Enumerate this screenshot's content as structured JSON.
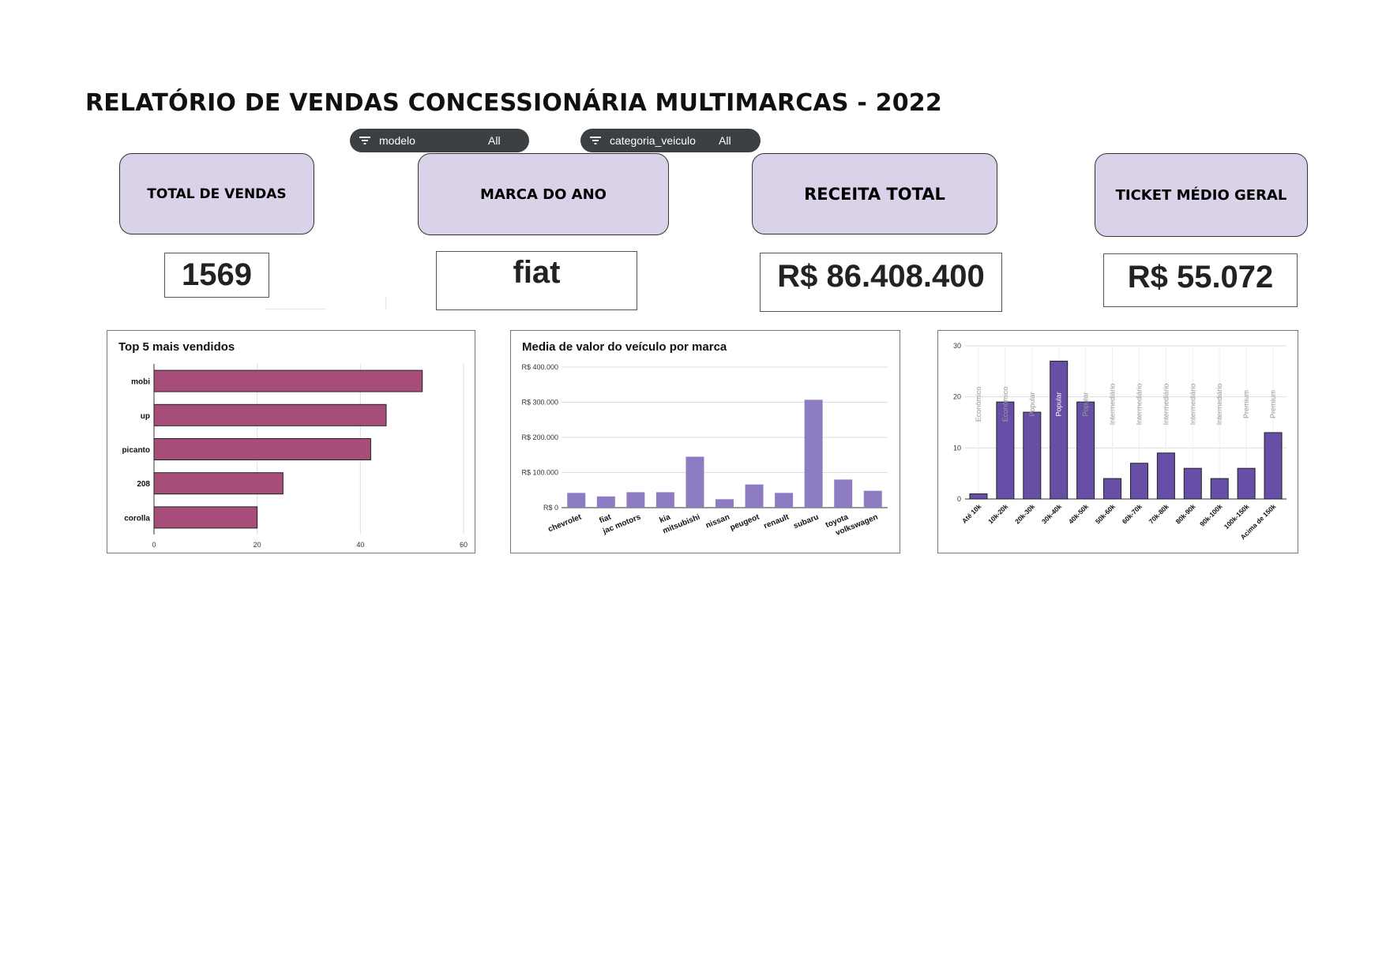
{
  "title": "RELATÓRIO DE VENDAS CONCESSIONÁRIA MULTIMARCAS - 2022",
  "filters": [
    {
      "label": "modelo",
      "value": "All",
      "icon": "filter-icon"
    },
    {
      "label": "categoria_veiculo",
      "value": "All",
      "icon": "filter-icon"
    }
  ],
  "kpis": {
    "total_vendas": {
      "label": "TOTAL DE VENDAS",
      "value": "1569"
    },
    "marca_ano": {
      "label": "MARCA DO ANO",
      "value": "fiat"
    },
    "receita": {
      "label": "RECEITA TOTAL",
      "value": "R$ 86.408.400"
    },
    "ticket": {
      "label": "TICKET MÉDIO GERAL",
      "value": "R$ 55.072"
    }
  },
  "colors": {
    "kpi_header_bg": "#d9d2e9",
    "top5_bar": "#a64d79",
    "marca_bar": "#8e7cc3",
    "faixa_bar": "#674ea7",
    "filter_bg": "#3c4043"
  },
  "chart_data": [
    {
      "type": "bar",
      "orientation": "horizontal",
      "title": "Top 5 mais vendidos",
      "categories": [
        "mobi",
        "up",
        "picanto",
        "208",
        "corolla"
      ],
      "values": [
        52,
        45,
        42,
        25,
        20
      ],
      "xlim": [
        0,
        60
      ],
      "xticks": [
        "0",
        "20",
        "40",
        "60"
      ],
      "grid": true
    },
    {
      "type": "bar",
      "title": "Media de valor do veículo por marca",
      "categories": [
        "chevrolet",
        "fiat",
        "jac motors",
        "kia",
        "mitsubishi",
        "nissan",
        "peugeot",
        "renault",
        "subaru",
        "toyota",
        "volkswagen"
      ],
      "values": [
        42000,
        32000,
        44000,
        44000,
        145000,
        24000,
        66000,
        42000,
        307000,
        80000,
        48000
      ],
      "ylim": [
        0,
        400000
      ],
      "yticks": [
        "R$ 0",
        "R$ 100.000",
        "R$ 200.000",
        "R$ 300.000",
        "R$ 400.000"
      ],
      "grid": true
    },
    {
      "type": "bar",
      "title": "",
      "categories": [
        "Até 10k",
        "10k-20k",
        "20k-30k",
        "30k-40k",
        "40k-50k",
        "50k-60k",
        "60k-70k",
        "70k-80k",
        "80k-90k",
        "90k-100k",
        "100k-150k",
        "Acima de 150k"
      ],
      "values": [
        1,
        19,
        17,
        27,
        19,
        4,
        7,
        9,
        6,
        4,
        6,
        13
      ],
      "annotations": [
        "Econômico",
        "Econômico",
        "Popular",
        "Popular",
        "Popular",
        "Intermediário",
        "Intermediário",
        "Intermediário",
        "Intermediário",
        "Intermediário",
        "Premium",
        "Premium"
      ],
      "ylim": [
        0,
        30
      ],
      "yticks": [
        "0",
        "10",
        "20",
        "30"
      ],
      "grid": true
    }
  ]
}
